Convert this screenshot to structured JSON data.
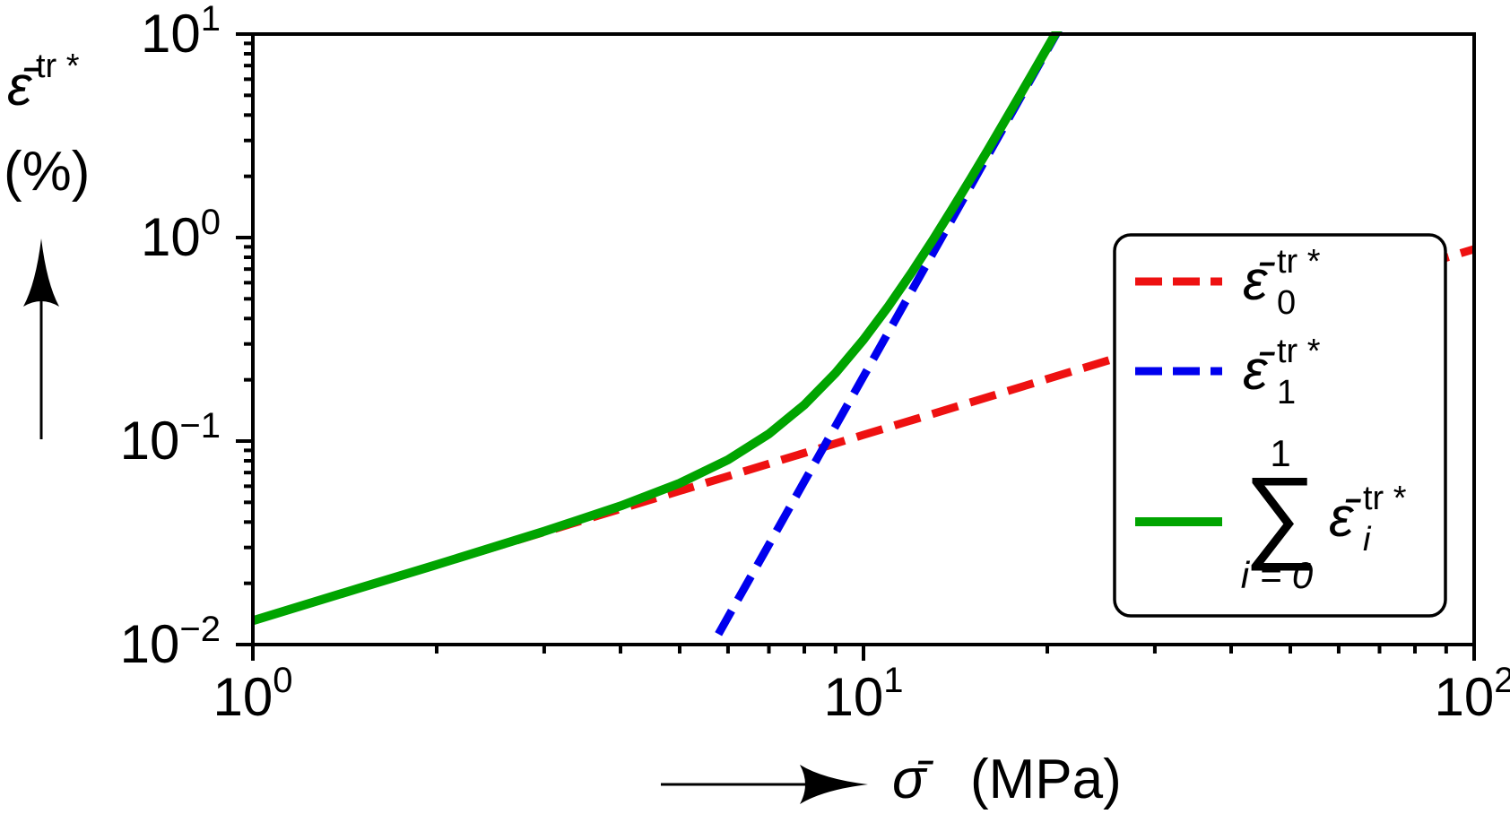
{
  "y_title": {
    "base": "ε̄",
    "sup": "tr *",
    "unit": "(%)"
  },
  "x_title": {
    "base": "σ̄",
    "unit": "(MPa)"
  },
  "chart_data": {
    "type": "line",
    "title": "",
    "xlabel": "σ̄ (MPa)",
    "ylabel": "ε̄ tr* (%)",
    "x_scale": "log",
    "y_scale": "log",
    "xlim": [
      1,
      100
    ],
    "ylim": [
      0.01,
      10
    ],
    "grid": false,
    "legend_position": "inside-right",
    "x_ticks": [
      {
        "value": 1,
        "base": "10",
        "exp": "0"
      },
      {
        "value": 10,
        "base": "10",
        "exp": "1"
      },
      {
        "value": 100,
        "base": "10",
        "exp": "2"
      }
    ],
    "y_ticks": [
      {
        "value": 10,
        "base": "10",
        "exp": "1"
      },
      {
        "value": 1,
        "base": "10",
        "exp": "0"
      },
      {
        "value": 0.1,
        "base": "10",
        "exp": "−1"
      },
      {
        "value": 0.01,
        "base": "10",
        "exp": "−2"
      }
    ],
    "series": [
      {
        "name": "ε̄0^tr*",
        "color": "#ee1111",
        "style": "dashed",
        "x": [
          1,
          1.5,
          2,
          3,
          5,
          8,
          10,
          15,
          20,
          30,
          50,
          70,
          100
        ],
        "y": [
          0.0131,
          0.019,
          0.0247,
          0.0357,
          0.0569,
          0.0874,
          0.1072,
          0.1552,
          0.2019,
          0.2924,
          0.4664,
          0.6343,
          0.8776
        ]
      },
      {
        "name": "ε̄1^tr*",
        "color": "#0000ee",
        "style": "dashed",
        "x": [
          5,
          5.66,
          6,
          7,
          8,
          9,
          10,
          12,
          14,
          16,
          18,
          20,
          22
        ],
        "y": [
          0.00517,
          0.01,
          0.01365,
          0.031,
          0.0633,
          0.1185,
          0.2077,
          0.549,
          1.2487,
          2.544,
          4.766,
          8.358,
          13.89
        ]
      },
      {
        "name": "sum_{i=0..1} ε̄i^tr*",
        "color": "#00a400",
        "style": "solid",
        "x": [
          1,
          1.5,
          2,
          3,
          4,
          5,
          6,
          7,
          8,
          9,
          10,
          11,
          12,
          13,
          14,
          15,
          16,
          18,
          20,
          21
        ],
        "y": [
          0.0131,
          0.019,
          0.0247,
          0.036,
          0.048,
          0.0621,
          0.0809,
          0.1084,
          0.1507,
          0.2159,
          0.3149,
          0.4622,
          0.6756,
          0.9774,
          1.3945,
          1.9585,
          2.709,
          4.949,
          8.56,
          11.05
        ]
      }
    ]
  },
  "legend": {
    "entries": [
      {
        "base": "ε̄",
        "sub": "0",
        "sup": "tr *"
      },
      {
        "base": "ε̄",
        "sub": "1",
        "sup": "tr *"
      },
      {
        "sum_upper": "1",
        "sum": "∑",
        "sum_lower": "i = 0",
        "base": "ε̄",
        "sub": "i",
        "sup": "tr *"
      }
    ]
  }
}
